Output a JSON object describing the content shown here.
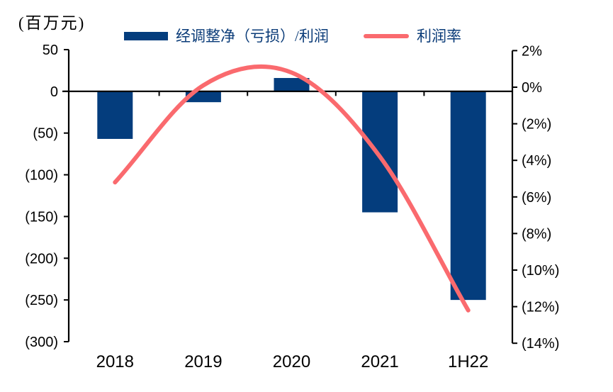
{
  "unit_label": "(百万元)",
  "legend": {
    "text_color": "#0A3B78",
    "items": [
      {
        "label": "经调整净（亏损）/利润",
        "swatch": "bar",
        "color": "#043D7D"
      },
      {
        "label": "利润率",
        "swatch": "line",
        "color": "#FA6A6E"
      }
    ]
  },
  "chart_data": {
    "type": "combo-bar-line",
    "title": "",
    "categories": [
      "2018",
      "2019",
      "2020",
      "2021",
      "1H22"
    ],
    "series": [
      {
        "name": "经调整净（亏损）/利润",
        "type": "bar",
        "axis": "left",
        "unit": "百万元",
        "color": "#043D7D",
        "values": [
          -57,
          -13,
          16,
          -145,
          -250
        ]
      },
      {
        "name": "利润率",
        "type": "line",
        "axis": "right",
        "unit": "%",
        "color": "#FA6A6E",
        "values": [
          -5.2,
          0.1,
          0.8,
          -3.8,
          -12.2
        ]
      }
    ],
    "left_axis": {
      "title": "(百万元)",
      "max": 50,
      "min": -300,
      "step": 50,
      "tick_labels": [
        "50",
        "0",
        "(50)",
        "(100)",
        "(150)",
        "(200)",
        "(250)",
        "(300)"
      ],
      "tick_values": [
        50,
        0,
        -50,
        -100,
        -150,
        -200,
        -250,
        -300
      ]
    },
    "right_axis": {
      "max": 2,
      "min": -14,
      "step": 2,
      "tick_labels": [
        "2%",
        "0%",
        "(2%)",
        "(4%)",
        "(6%)",
        "(8%)",
        "(10%)",
        "(12%)",
        "(14%)"
      ],
      "tick_values": [
        2,
        0,
        -2,
        -4,
        -6,
        -8,
        -10,
        -12,
        -14
      ]
    },
    "x_axis": {
      "labels": [
        "2018",
        "2019",
        "2020",
        "2021",
        "1H22"
      ]
    },
    "grid": false,
    "legend_position": "top",
    "axis_color": "#000000",
    "background": "#ffffff"
  }
}
